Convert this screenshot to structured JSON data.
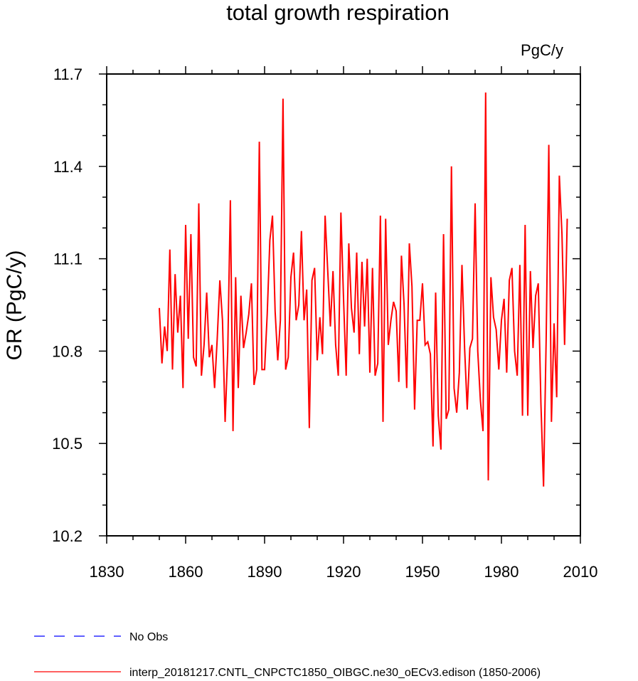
{
  "chart_data": {
    "type": "line",
    "title": "total growth respiration",
    "units_label": "PgC/y",
    "ylabel": "GR  (PgC/y)",
    "xlabel": "",
    "xlim": [
      1830,
      2010
    ],
    "ylim": [
      10.2,
      11.7
    ],
    "x_ticks": [
      "1830",
      "1860",
      "1890",
      "1920",
      "1950",
      "1980",
      "2010"
    ],
    "y_ticks": [
      "10.2",
      "10.5",
      "10.8",
      "11.1",
      "11.4",
      "11.7"
    ],
    "grid": false,
    "legend_position": "bottom",
    "legend": [
      {
        "name": "No Obs",
        "color": "#0000ff",
        "style": "dashed"
      },
      {
        "name": "interp_20181217.CNTL_CNPCTC1850_OIBGC.ne30_oECv3.edison (1850-2006)",
        "color": "#ff0000",
        "style": "solid"
      }
    ],
    "series": [
      {
        "name": "interp_20181217.CNTL_CNPCTC1850_OIBGC.ne30_oECv3.edison (1850-2006)",
        "color": "#ff0000",
        "x_start": 1850,
        "values": [
          10.94,
          10.76,
          10.88,
          10.8,
          11.13,
          10.74,
          11.05,
          10.86,
          10.98,
          10.68,
          11.21,
          10.84,
          11.18,
          10.78,
          10.75,
          11.28,
          10.72,
          10.82,
          10.99,
          10.78,
          10.82,
          10.68,
          10.84,
          11.03,
          10.9,
          10.57,
          10.8,
          11.29,
          10.54,
          11.04,
          10.68,
          10.98,
          10.81,
          10.86,
          10.92,
          11.02,
          10.69,
          10.74,
          11.48,
          10.74,
          10.74,
          10.92,
          11.16,
          11.24,
          10.93,
          10.77,
          10.9,
          11.62,
          10.74,
          10.78,
          11.04,
          11.12,
          10.9,
          10.95,
          11.19,
          10.9,
          11.0,
          10.55,
          11.03,
          11.07,
          10.77,
          10.91,
          10.79,
          11.24,
          11.06,
          10.88,
          11.06,
          10.82,
          10.72,
          11.25,
          10.97,
          10.72,
          11.15,
          10.94,
          10.86,
          11.12,
          10.79,
          11.09,
          10.88,
          11.1,
          10.73,
          11.07,
          10.72,
          10.76,
          11.24,
          10.57,
          11.23,
          10.82,
          10.9,
          10.96,
          10.93,
          10.7,
          11.11,
          10.95,
          10.68,
          11.15,
          11.01,
          10.61,
          10.9,
          10.9,
          11.02,
          10.82,
          10.83,
          10.79,
          10.49,
          10.99,
          10.59,
          10.48,
          11.18,
          10.58,
          10.61,
          11.4,
          10.68,
          10.6,
          10.73,
          11.08,
          10.81,
          10.61,
          10.81,
          10.84,
          11.28,
          10.8,
          10.64,
          10.54,
          11.64,
          10.38,
          11.04,
          10.91,
          10.87,
          10.74,
          10.9,
          10.97,
          10.73,
          11.03,
          11.07,
          10.8,
          10.72,
          11.08,
          10.59,
          11.21,
          10.59,
          11.06,
          10.81,
          10.98,
          11.02,
          10.63,
          10.36,
          10.84,
          11.47,
          10.57,
          10.89,
          10.65,
          11.37,
          11.18,
          10.82,
          11.23
        ]
      }
    ]
  }
}
